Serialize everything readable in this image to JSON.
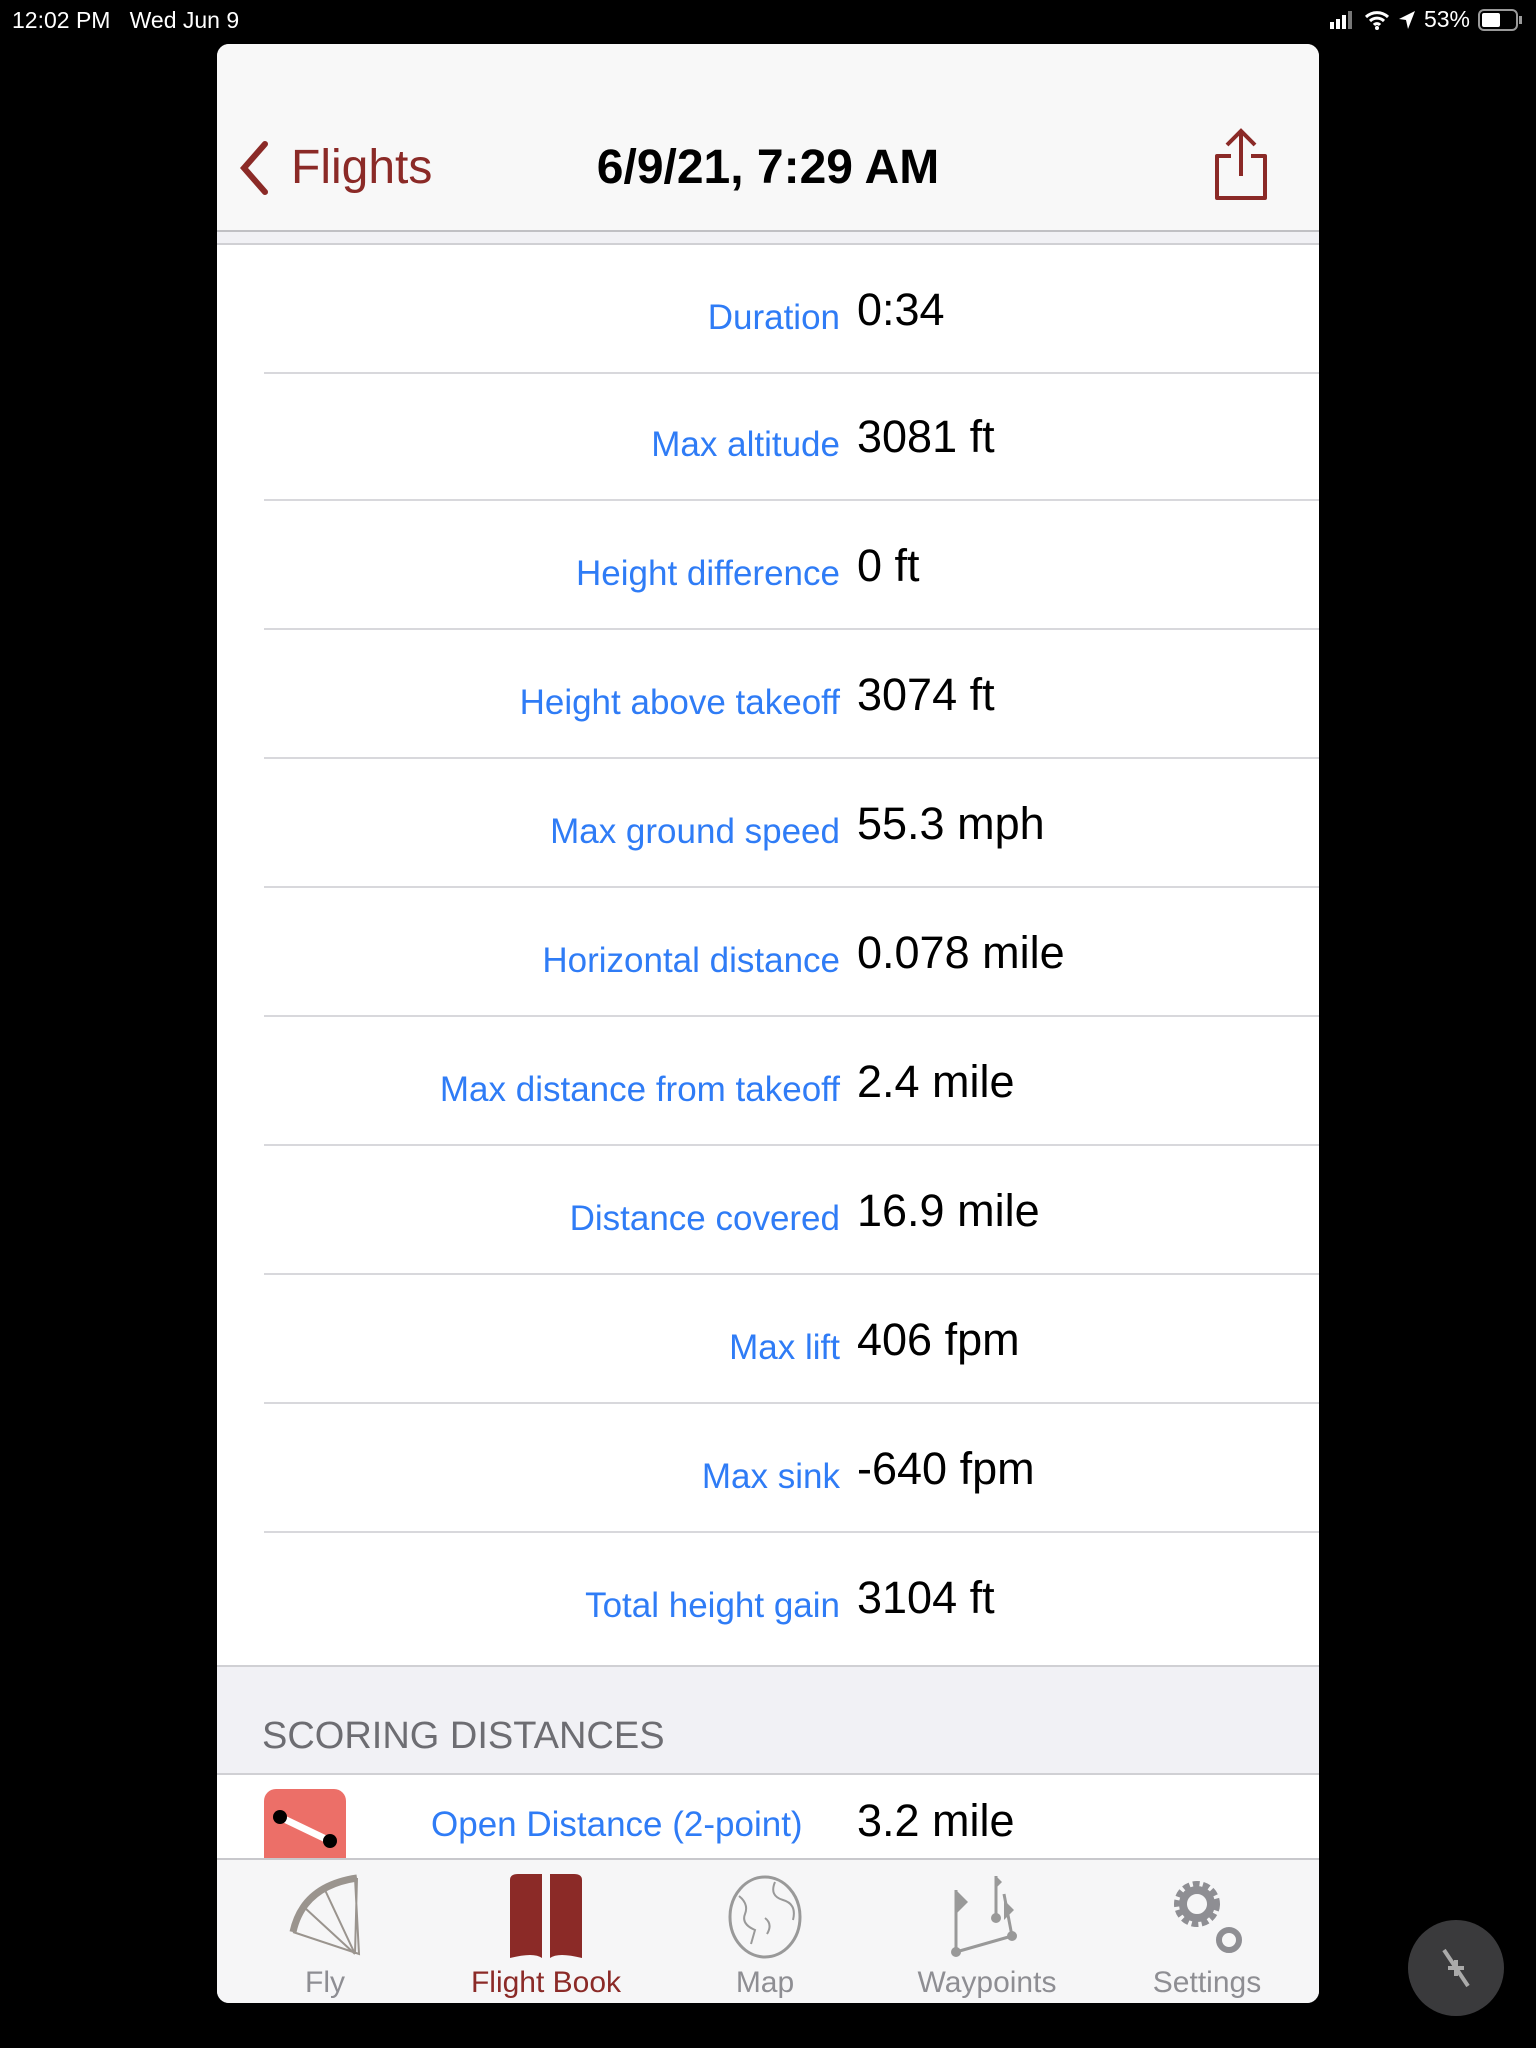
{
  "status_bar": {
    "time": "12:02 PM",
    "date": "Wed Jun 9",
    "battery": "53%"
  },
  "nav": {
    "back_label": "Flights",
    "title": "6/9/21, 7:29 AM"
  },
  "stats": [
    {
      "label": "Duration",
      "value": "0:34"
    },
    {
      "label": "Max altitude",
      "value": "3081 ft"
    },
    {
      "label": "Height difference",
      "value": "0 ft"
    },
    {
      "label": "Height above takeoff",
      "value": "3074 ft"
    },
    {
      "label": "Max ground speed",
      "value": "55.3 mph"
    },
    {
      "label": "Horizontal distance",
      "value": "0.078 mile"
    },
    {
      "label": "Max distance from takeoff",
      "value": "2.4 mile"
    },
    {
      "label": "Distance covered",
      "value": "16.9 mile"
    },
    {
      "label": "Max lift",
      "value": "406 fpm"
    },
    {
      "label": "Max sink",
      "value": "-640 fpm"
    },
    {
      "label": "Total height gain",
      "value": "3104 ft"
    }
  ],
  "scoring": {
    "header": "SCORING DISTANCES",
    "items": [
      {
        "label": "Open Distance (2-point)",
        "value": "3.2 mile"
      }
    ]
  },
  "tabs": [
    {
      "label": "Fly",
      "icon": "paraglider-icon"
    },
    {
      "label": "Flight Book",
      "icon": "book-icon",
      "active": true
    },
    {
      "label": "Map",
      "icon": "globe-icon"
    },
    {
      "label": "Waypoints",
      "icon": "waypoints-icon"
    },
    {
      "label": "Settings",
      "icon": "gear-icon"
    }
  ],
  "colors": {
    "accent": "#8b2a27",
    "label": "#2f7cf6"
  }
}
